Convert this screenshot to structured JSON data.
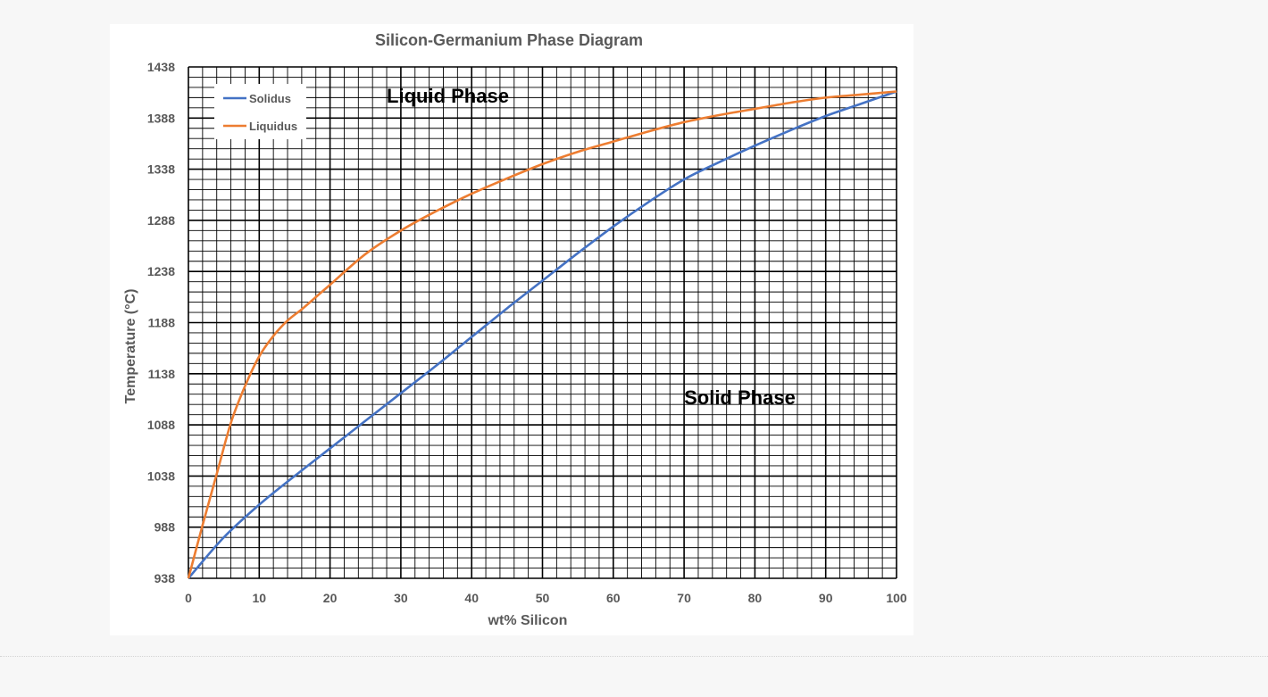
{
  "chart_data": {
    "type": "line",
    "title": "Silicon-Germanium Phase Diagram",
    "xlabel": "wt% Silicon",
    "ylabel": "Temperature (°C)",
    "xlim": [
      0,
      100
    ],
    "ylim": [
      938,
      1438
    ],
    "x_ticks": [
      0,
      10,
      20,
      30,
      40,
      50,
      60,
      70,
      80,
      90,
      100
    ],
    "y_ticks": [
      938,
      988,
      1038,
      1088,
      1138,
      1188,
      1238,
      1288,
      1338,
      1388,
      1438
    ],
    "grid": true,
    "legend_position": "top-left",
    "annotations": [
      {
        "text": "Liquid Phase",
        "x": 28,
        "y": 1403
      },
      {
        "text": "Solid Phase",
        "x": 70,
        "y": 1108
      }
    ],
    "series": [
      {
        "name": "Solidus",
        "color": "#4472c4",
        "x": [
          0,
          5,
          10,
          15,
          20,
          25,
          30,
          35,
          40,
          45,
          50,
          55,
          60,
          65,
          70,
          75,
          80,
          85,
          90,
          95,
          100
        ],
        "y": [
          938,
          978,
          1010,
          1038,
          1065,
          1092,
          1119,
          1146,
          1174,
          1202,
          1229,
          1256,
          1282,
          1306,
          1328,
          1345,
          1361,
          1376,
          1390,
          1402,
          1414
        ]
      },
      {
        "name": "Liquidus",
        "color": "#ed7d31",
        "x": [
          0,
          2,
          4,
          6,
          8,
          10,
          12,
          14,
          16,
          18,
          20,
          25,
          30,
          35,
          40,
          45,
          50,
          55,
          60,
          65,
          70,
          75,
          80,
          85,
          90,
          95,
          100
        ],
        "y": [
          938,
          990,
          1040,
          1090,
          1126,
          1155,
          1175,
          1190,
          1201,
          1213,
          1225,
          1255,
          1278,
          1297,
          1314,
          1329,
          1343,
          1355,
          1365,
          1375,
          1384,
          1391,
          1397,
          1403,
          1408,
          1411,
          1414
        ]
      }
    ]
  }
}
